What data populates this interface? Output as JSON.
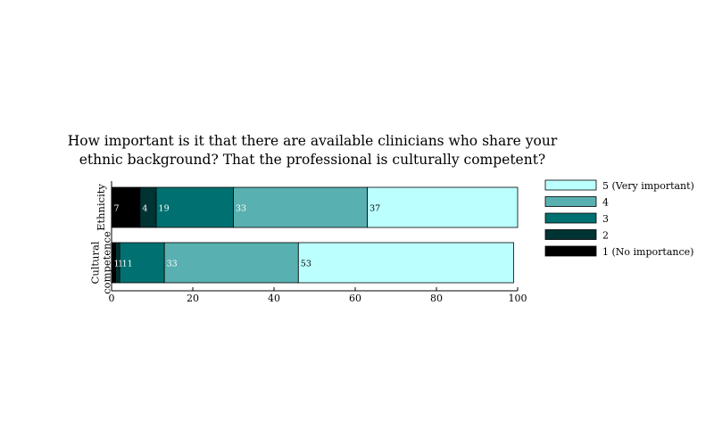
{
  "chart_data": {
    "type": "bar",
    "orientation": "horizontal",
    "stacked": true,
    "title_lines": [
      "How important is it that there are available clinicians who share your",
      "ethnic background? That the professional is culturally competent?"
    ],
    "categories": [
      {
        "label_lines": [
          "Ethnicity"
        ]
      },
      {
        "label_lines": [
          "Cultural",
          "competence"
        ]
      }
    ],
    "series": [
      {
        "name": "1 (No importance)",
        "color": "#000000",
        "label_color": "#ffffff",
        "values": [
          7,
          1
        ]
      },
      {
        "name": "2",
        "color": "#003333",
        "label_color": "#ffffff",
        "values": [
          4,
          1
        ]
      },
      {
        "name": "3",
        "color": "#007070",
        "label_color": "#ffffff",
        "values": [
          19,
          11
        ]
      },
      {
        "name": "4",
        "color": "#59b0b0",
        "label_color": "#ffffff",
        "values": [
          33,
          33
        ]
      },
      {
        "name": "5 (Very important)",
        "color": "#bbffff",
        "label_color": "#000000",
        "values": [
          37,
          53
        ]
      }
    ],
    "legend_order": [
      "5 (Very important)",
      "4",
      "3",
      "2",
      "1 (No importance)"
    ],
    "legend_position": "right",
    "xlim": [
      0,
      100
    ],
    "xticks": [
      0,
      20,
      40,
      60,
      80,
      100
    ],
    "grid": false
  }
}
